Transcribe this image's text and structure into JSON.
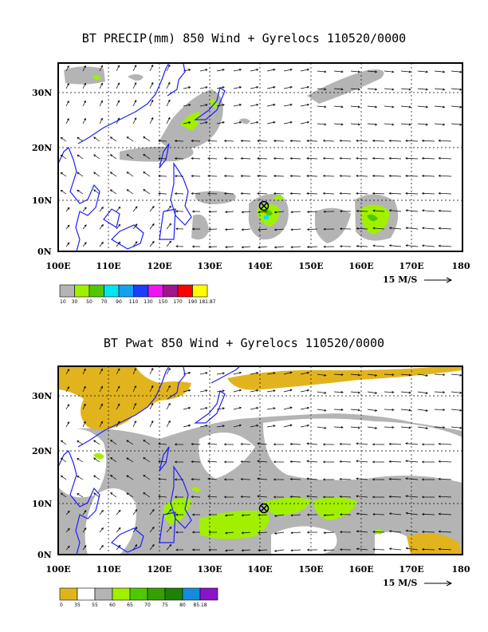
{
  "panels": [
    {
      "title": "BT PRECIP(mm) 850 Wind + Gyrelocs 110520/0000",
      "lat_labels": [
        "30N",
        "20N",
        "10N",
        "0N"
      ],
      "lon_labels": [
        "100E",
        "110E",
        "120E",
        "130E",
        "140E",
        "150E",
        "160E",
        "170E",
        "180"
      ],
      "ref_vector_label": "15 M/S",
      "legend": {
        "labels": [
          "10",
          "30",
          "50",
          "70",
          "90",
          "110",
          "130",
          "150",
          "170",
          "190",
          "181.87"
        ],
        "colors": [
          "#b4b4b4",
          "#a0f000",
          "#50c800",
          "#00e6f0",
          "#14a0f0",
          "#1e3cff",
          "#f014f0",
          "#a0148c",
          "#ff0000",
          "#ffff00"
        ]
      }
    },
    {
      "title": "BT Pwat 850 Wind + Gyrelocs 110520/0000",
      "lat_labels": [
        "30N",
        "20N",
        "10N",
        "0N"
      ],
      "lon_labels": [
        "100E",
        "110E",
        "120E",
        "130E",
        "140E",
        "150E",
        "160E",
        "170E",
        "180"
      ],
      "ref_vector_label": "15 M/S",
      "legend": {
        "labels": [
          "0",
          "35",
          "55",
          "60",
          "65",
          "70",
          "75",
          "80",
          "85.18"
        ],
        "colors": [
          "#e1b41e",
          "#ffffff",
          "#b4b4b4",
          "#a0f000",
          "#50c800",
          "#37a000",
          "#1e8200",
          "#148cdc",
          "#8c14c8"
        ]
      }
    }
  ],
  "colors": {
    "coast": "#1e1eff",
    "gray": "#b4b4b4",
    "green_light": "#a0f000",
    "green": "#50c800",
    "cyan": "#00e6f0",
    "tan": "#e1b41e"
  },
  "gyre_marker": "circle-x-icon"
}
